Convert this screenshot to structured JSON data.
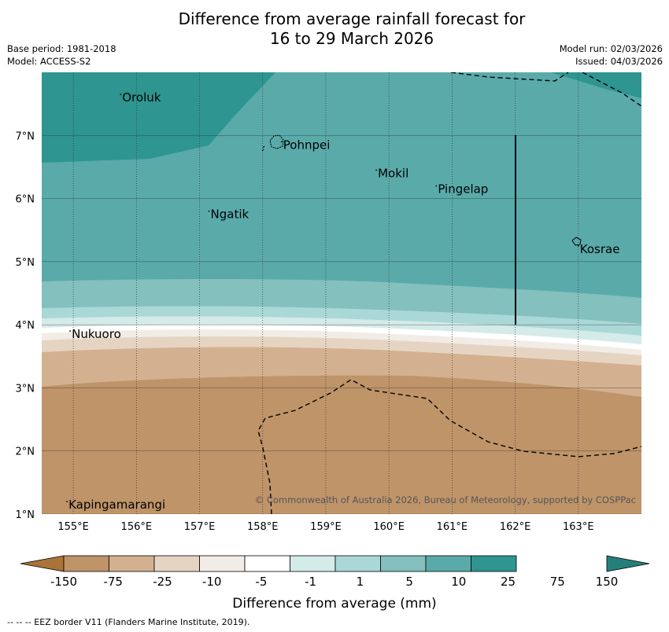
{
  "title": {
    "line1": "Difference from average rainfall forecast for",
    "line2": "16 to 29 March 2026"
  },
  "meta_left": {
    "base_period": "Base period: 1981-2018",
    "model": "Model: ACCESS-S2"
  },
  "meta_right": {
    "model_run": "Model run: 02/03/2026",
    "issued": "Issued: 04/03/2026"
  },
  "map": {
    "lon_range": [
      154.5,
      164.0
    ],
    "lat_range": [
      1.0,
      8.0
    ],
    "lon_ticks": [
      "155°E",
      "156°E",
      "157°E",
      "158°E",
      "159°E",
      "160°E",
      "161°E",
      "162°E",
      "163°E"
    ],
    "lat_ticks": [
      "1°N",
      "2°N",
      "3°N",
      "4°N",
      "5°N",
      "6°N",
      "7°N"
    ],
    "places": [
      {
        "name": "Oroluk",
        "lon": 155.75,
        "lat": 7.6
      },
      {
        "name": "Pohnpei",
        "lon": 158.3,
        "lat": 6.85
      },
      {
        "name": "Mokil",
        "lon": 159.8,
        "lat": 6.4
      },
      {
        "name": "Pingelap",
        "lon": 160.75,
        "lat": 6.15
      },
      {
        "name": "Ngatik",
        "lon": 157.15,
        "lat": 5.75
      },
      {
        "name": "Kosrae",
        "lon": 163.0,
        "lat": 5.2
      },
      {
        "name": "Nukuoro",
        "lon": 154.95,
        "lat": 3.85
      },
      {
        "name": "Kapingamarangi",
        "lon": 154.9,
        "lat": 1.15
      }
    ],
    "copyright": "© Commonwealth of Australia 2026, Bureau of Meteorology, supported by COSPPac"
  },
  "colorbar": {
    "tick_labels": [
      "-150",
      "-75",
      "-25",
      "-10",
      "-5",
      "-1",
      "1",
      "5",
      "10",
      "25",
      "75",
      "150"
    ],
    "colors": [
      "#ab7339",
      "#bf9469",
      "#d3b190",
      "#e6d4c3",
      "#f2ece6",
      "#ffffff",
      "#d4ebe9",
      "#aad8d6",
      "#83c0be",
      "#5aaaaa",
      "#2e9590",
      "#247f7b"
    ],
    "label": "Difference from average (mm)"
  },
  "footnote": "--  --  -- EEZ border V11 (Flanders Marine Institute, 2019)."
}
